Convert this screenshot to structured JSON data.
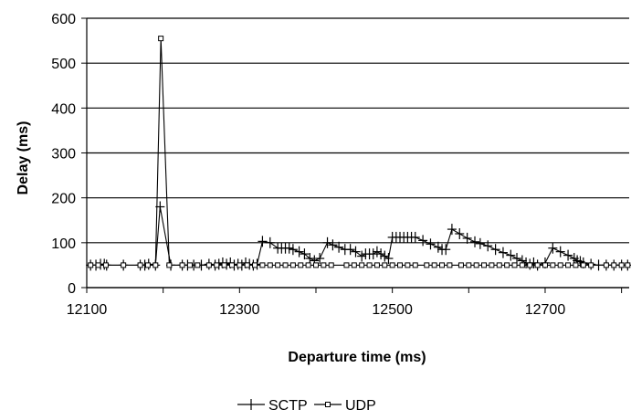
{
  "chart_data": {
    "type": "line",
    "xlabel": "Departure time (ms)",
    "ylabel": "Delay (ms)",
    "xlim": [
      12100,
      12810
    ],
    "ylim": [
      0,
      600
    ],
    "xticks": [
      12100,
      12300,
      12500,
      12700
    ],
    "yticks": [
      0,
      100,
      200,
      300,
      400,
      500,
      600
    ],
    "grid": "horizontal",
    "legend_position": "bottom-center",
    "series": [
      {
        "name": "SCTP",
        "marker": "plus",
        "x": [
          12105,
          12112,
          12118,
          12123,
          12126,
          12148,
          12170,
          12176,
          12181,
          12190,
          12196,
          12210,
          12225,
          12232,
          12240,
          12250,
          12260,
          12268,
          12273,
          12278,
          12283,
          12288,
          12293,
          12298,
          12303,
          12308,
          12313,
          12318,
          12323,
          12330,
          12340,
          12350,
          12355,
          12360,
          12365,
          12370,
          12378,
          12385,
          12392,
          12398,
          12405,
          12415,
          12422,
          12430,
          12438,
          12445,
          12452,
          12460,
          12465,
          12470,
          12475,
          12480,
          12485,
          12490,
          12495,
          12500,
          12505,
          12510,
          12515,
          12520,
          12525,
          12530,
          12540,
          12550,
          12560,
          12565,
          12570,
          12578,
          12588,
          12598,
          12608,
          12615,
          12625,
          12635,
          12645,
          12655,
          12663,
          12670,
          12675,
          12680,
          12685,
          12690,
          12700,
          12710,
          12720,
          12730,
          12738,
          12742,
          12746,
          12750,
          12760,
          12770,
          12780,
          12790,
          12800,
          12808
        ],
        "y": [
          50,
          50,
          52,
          52,
          50,
          50,
          50,
          50,
          52,
          50,
          180,
          50,
          50,
          50,
          50,
          50,
          52,
          50,
          52,
          55,
          52,
          55,
          50,
          52,
          50,
          55,
          52,
          50,
          52,
          103,
          100,
          88,
          88,
          88,
          88,
          85,
          80,
          75,
          65,
          60,
          65,
          100,
          95,
          90,
          85,
          85,
          80,
          70,
          75,
          75,
          75,
          80,
          75,
          70,
          65,
          112,
          112,
          112,
          112,
          112,
          112,
          112,
          105,
          97,
          90,
          85,
          85,
          130,
          120,
          110,
          102,
          98,
          93,
          85,
          78,
          72,
          65,
          60,
          55,
          52,
          55,
          50,
          55,
          88,
          80,
          72,
          65,
          60,
          58,
          55,
          52,
          50,
          50,
          50,
          50,
          50
        ]
      },
      {
        "name": "UDP",
        "marker": "square",
        "x": [
          12105,
          12115,
          12125,
          12148,
          12170,
          12180,
          12190,
          12197,
          12208,
          12225,
          12235,
          12245,
          12260,
          12270,
          12280,
          12290,
          12300,
          12310,
          12320,
          12330,
          12340,
          12350,
          12360,
          12370,
          12380,
          12390,
          12400,
          12410,
          12420,
          12440,
          12450,
          12460,
          12470,
          12480,
          12490,
          12500,
          12510,
          12520,
          12530,
          12545,
          12555,
          12565,
          12575,
          12590,
          12600,
          12610,
          12620,
          12630,
          12640,
          12650,
          12660,
          12670,
          12680,
          12690,
          12700,
          12710,
          12720,
          12730,
          12740,
          12750,
          12760,
          12780,
          12790,
          12800,
          12808
        ],
        "y": [
          50,
          50,
          50,
          50,
          50,
          50,
          50,
          555,
          50,
          50,
          50,
          50,
          50,
          50,
          50,
          50,
          50,
          50,
          50,
          50,
          50,
          50,
          50,
          50,
          50,
          50,
          50,
          50,
          50,
          50,
          50,
          50,
          50,
          50,
          50,
          50,
          50,
          50,
          50,
          50,
          50,
          50,
          50,
          50,
          50,
          50,
          50,
          50,
          50,
          50,
          50,
          50,
          50,
          50,
          50,
          50,
          50,
          50,
          50,
          50,
          50,
          50,
          50,
          50,
          50
        ]
      }
    ]
  }
}
